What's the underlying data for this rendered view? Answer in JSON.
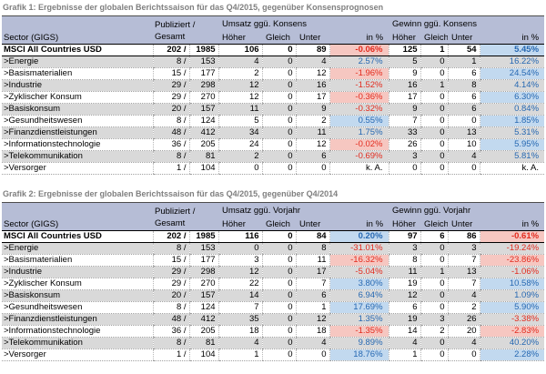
{
  "colors": {
    "header-bg": "#b6bdd6",
    "stripe-bg": "#d9d9d9",
    "pos-bg": "#c2d9ef",
    "neg-bg": "#f6c7c1",
    "pos-text": "#2668b2",
    "neg-text": "#e32b1e",
    "title-text": "#7f7f7f"
  },
  "chart_data": [
    {
      "type": "table",
      "title": "Grafik 1: Ergebnisse der globalen Berichtssaison für das Q4/2015, gegenüber Konsensprognosen",
      "columns": {
        "sector": "Sector (GIGS)",
        "published": "Publiziert /",
        "published2": "Gesamt",
        "group_umsatz": "Umsatz ggü. Konsens",
        "group_gewinn": "Gewinn ggü. Konsens",
        "hoeher": "Höher",
        "gleich": "Gleich",
        "unter": "Unter",
        "in_pct": "in %"
      },
      "rows": [
        {
          "sector": "MSCI All Countries USD",
          "is_total": true,
          "pub": "202 /",
          "total": "1985",
          "u_hoeher": "106",
          "u_gleich": "0",
          "u_unter": "89",
          "u_pct": "-0.06%",
          "g_hoeher": "125",
          "g_gleich": "1",
          "g_unter": "54",
          "g_pct": "5.45%"
        },
        {
          "sector": ">Energie",
          "pub": "8 /",
          "total": "153",
          "u_hoeher": "4",
          "u_gleich": "0",
          "u_unter": "4",
          "u_pct": "2.57%",
          "g_hoeher": "5",
          "g_gleich": "0",
          "g_unter": "1",
          "g_pct": "16.22%"
        },
        {
          "sector": ">Basismaterialien",
          "pub": "15 /",
          "total": "177",
          "u_hoeher": "2",
          "u_gleich": "0",
          "u_unter": "12",
          "u_pct": "-1.96%",
          "g_hoeher": "9",
          "g_gleich": "0",
          "g_unter": "6",
          "g_pct": "24.54%"
        },
        {
          "sector": ">Industrie",
          "pub": "29 /",
          "total": "298",
          "u_hoeher": "12",
          "u_gleich": "0",
          "u_unter": "16",
          "u_pct": "-1.52%",
          "g_hoeher": "16",
          "g_gleich": "1",
          "g_unter": "8",
          "g_pct": "4.14%"
        },
        {
          "sector": ">Zyklischer Konsum",
          "pub": "29 /",
          "total": "270",
          "u_hoeher": "12",
          "u_gleich": "0",
          "u_unter": "17",
          "u_pct": "-0.36%",
          "g_hoeher": "17",
          "g_gleich": "0",
          "g_unter": "6",
          "g_pct": "6.30%"
        },
        {
          "sector": ">Basiskonsum",
          "pub": "20 /",
          "total": "157",
          "u_hoeher": "11",
          "u_gleich": "0",
          "u_unter": "9",
          "u_pct": "-0.32%",
          "g_hoeher": "9",
          "g_gleich": "0",
          "g_unter": "6",
          "g_pct": "0.84%"
        },
        {
          "sector": ">Gesundheitswesen",
          "pub": "8 /",
          "total": "124",
          "u_hoeher": "5",
          "u_gleich": "0",
          "u_unter": "2",
          "u_pct": "0.55%",
          "g_hoeher": "7",
          "g_gleich": "0",
          "g_unter": "0",
          "g_pct": "1.85%"
        },
        {
          "sector": ">Finanzdienstleistungen",
          "pub": "48 /",
          "total": "412",
          "u_hoeher": "34",
          "u_gleich": "0",
          "u_unter": "11",
          "u_pct": "1.75%",
          "g_hoeher": "33",
          "g_gleich": "0",
          "g_unter": "13",
          "g_pct": "5.31%"
        },
        {
          "sector": ">Informationstechnologie",
          "pub": "36 /",
          "total": "205",
          "u_hoeher": "24",
          "u_gleich": "0",
          "u_unter": "12",
          "u_pct": "-0.02%",
          "g_hoeher": "26",
          "g_gleich": "0",
          "g_unter": "10",
          "g_pct": "5.95%"
        },
        {
          "sector": ">Telekommunikation",
          "pub": "8 /",
          "total": "81",
          "u_hoeher": "2",
          "u_gleich": "0",
          "u_unter": "6",
          "u_pct": "-0.69%",
          "g_hoeher": "3",
          "g_gleich": "0",
          "g_unter": "4",
          "g_pct": "5.81%"
        },
        {
          "sector": ">Versorger",
          "pub": "1 /",
          "total": "104",
          "u_hoeher": "0",
          "u_gleich": "0",
          "u_unter": "0",
          "u_pct": "k. A.",
          "g_hoeher": "0",
          "g_gleich": "0",
          "g_unter": "0",
          "g_pct": "k. A."
        }
      ]
    },
    {
      "type": "table",
      "title": "Grafik 2: Ergebnisse der globalen Berichtssaison für das Q4/2015, gegenüber Q4/2014",
      "columns": {
        "sector": "Sector (GIGS)",
        "published": "Publiziert /",
        "published2": "Gesamt",
        "group_umsatz": "Umsatz ggü. Vorjahr",
        "group_gewinn": "Gewinn ggü. Vorjahr",
        "hoeher": "Höher",
        "gleich": "Gleich",
        "unter": "Unter",
        "in_pct": "in %"
      },
      "rows": [
        {
          "sector": "MSCI All Countries USD",
          "is_total": true,
          "pub": "202 /",
          "total": "1985",
          "u_hoeher": "116",
          "u_gleich": "0",
          "u_unter": "84",
          "u_pct": "0.20%",
          "g_hoeher": "97",
          "g_gleich": "6",
          "g_unter": "86",
          "g_pct": "-0.61%"
        },
        {
          "sector": ">Energie",
          "pub": "8 /",
          "total": "153",
          "u_hoeher": "0",
          "u_gleich": "0",
          "u_unter": "8",
          "u_pct": "-31.01%",
          "g_hoeher": "3",
          "g_gleich": "0",
          "g_unter": "3",
          "g_pct": "-19.24%"
        },
        {
          "sector": ">Basismaterialien",
          "pub": "15 /",
          "total": "177",
          "u_hoeher": "3",
          "u_gleich": "0",
          "u_unter": "11",
          "u_pct": "-16.32%",
          "g_hoeher": "8",
          "g_gleich": "0",
          "g_unter": "7",
          "g_pct": "-23.86%"
        },
        {
          "sector": ">Industrie",
          "pub": "29 /",
          "total": "298",
          "u_hoeher": "12",
          "u_gleich": "0",
          "u_unter": "17",
          "u_pct": "-5.04%",
          "g_hoeher": "11",
          "g_gleich": "1",
          "g_unter": "13",
          "g_pct": "-1.06%"
        },
        {
          "sector": ">Zyklischer Konsum",
          "pub": "29 /",
          "total": "270",
          "u_hoeher": "22",
          "u_gleich": "0",
          "u_unter": "7",
          "u_pct": "3.80%",
          "g_hoeher": "19",
          "g_gleich": "0",
          "g_unter": "7",
          "g_pct": "10.58%"
        },
        {
          "sector": ">Basiskonsum",
          "pub": "20 /",
          "total": "157",
          "u_hoeher": "14",
          "u_gleich": "0",
          "u_unter": "6",
          "u_pct": "6.94%",
          "g_hoeher": "12",
          "g_gleich": "0",
          "g_unter": "4",
          "g_pct": "1.09%"
        },
        {
          "sector": ">Gesundheitswesen",
          "pub": "8 /",
          "total": "124",
          "u_hoeher": "7",
          "u_gleich": "0",
          "u_unter": "1",
          "u_pct": "17.69%",
          "g_hoeher": "6",
          "g_gleich": "0",
          "g_unter": "2",
          "g_pct": "5.90%"
        },
        {
          "sector": ">Finanzdienstleistungen",
          "pub": "48 /",
          "total": "412",
          "u_hoeher": "35",
          "u_gleich": "0",
          "u_unter": "12",
          "u_pct": "1.35%",
          "g_hoeher": "19",
          "g_gleich": "3",
          "g_unter": "26",
          "g_pct": "-3.38%"
        },
        {
          "sector": ">Informationstechnologie",
          "pub": "36 /",
          "total": "205",
          "u_hoeher": "18",
          "u_gleich": "0",
          "u_unter": "18",
          "u_pct": "-1.35%",
          "g_hoeher": "14",
          "g_gleich": "2",
          "g_unter": "20",
          "g_pct": "-2.83%"
        },
        {
          "sector": ">Telekommunikation",
          "pub": "8 /",
          "total": "81",
          "u_hoeher": "4",
          "u_gleich": "0",
          "u_unter": "4",
          "u_pct": "9.89%",
          "g_hoeher": "4",
          "g_gleich": "0",
          "g_unter": "4",
          "g_pct": "40.20%"
        },
        {
          "sector": ">Versorger",
          "pub": "1 /",
          "total": "104",
          "u_hoeher": "1",
          "u_gleich": "0",
          "u_unter": "0",
          "u_pct": "18.76%",
          "g_hoeher": "1",
          "g_gleich": "0",
          "g_unter": "0",
          "g_pct": "2.28%"
        }
      ]
    }
  ]
}
